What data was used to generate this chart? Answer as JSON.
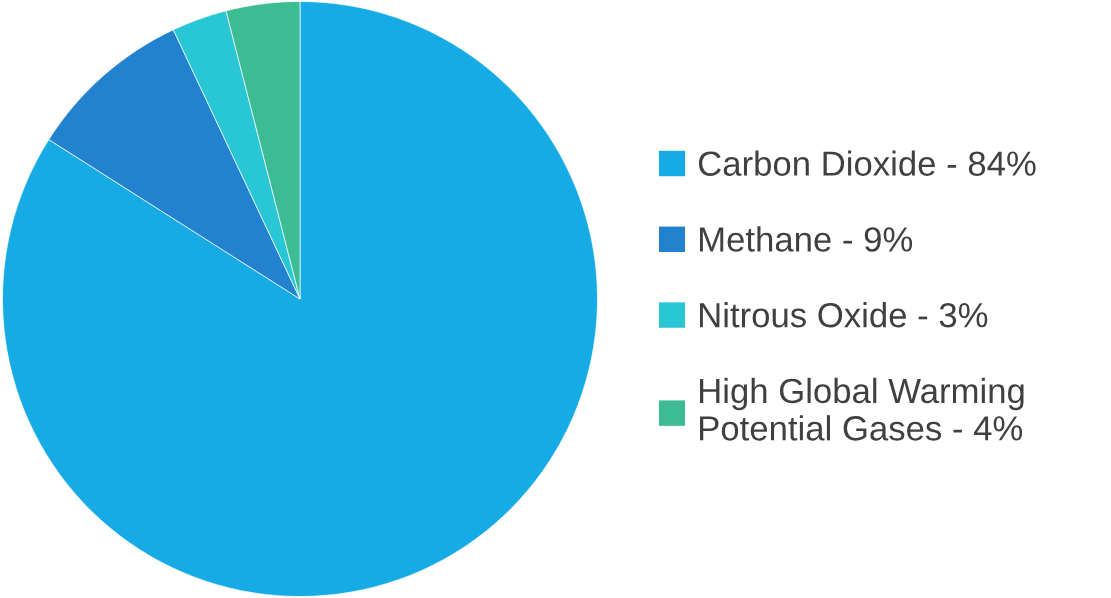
{
  "chart_data": {
    "type": "pie",
    "categories": [
      "Carbon Dioxide - 84%",
      "Methane - 9%",
      "Nitrous Oxide - 3%",
      "High Global Warming\nPotential Gases - 4%"
    ],
    "values": [
      84,
      9,
      3,
      4
    ],
    "colors": [
      "#17abe6",
      "#2382cf",
      "#29c6d6",
      "#3dbb92"
    ],
    "legend": "right"
  }
}
